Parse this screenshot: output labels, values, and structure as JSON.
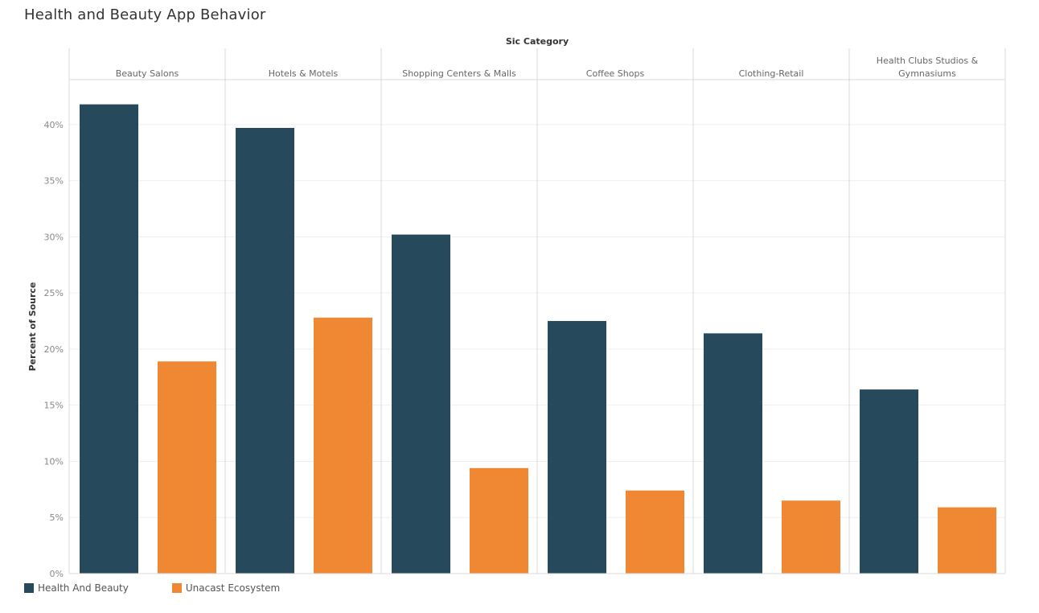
{
  "title": "Health and Beauty App Behavior",
  "chart_data": {
    "type": "bar",
    "column_header": "Sic Category",
    "ylabel": "Percent of Source",
    "ylim": [
      0,
      44
    ],
    "y_ticks": [
      0,
      5,
      10,
      15,
      20,
      25,
      30,
      35,
      40
    ],
    "y_tick_labels": [
      "0%",
      "5%",
      "10%",
      "15%",
      "20%",
      "25%",
      "30%",
      "35%",
      "40%"
    ],
    "grid": true,
    "legend_position": "bottom-left",
    "categories": [
      "Beauty Salons",
      "Hotels & Motels",
      "Shopping Centers & Malls",
      "Coffee Shops",
      "Clothing-Retail",
      "Health Clubs Studios & Gymnasiums"
    ],
    "category_label_lines": [
      [
        "Beauty Salons"
      ],
      [
        "Hotels & Motels"
      ],
      [
        "Shopping Centers & Malls"
      ],
      [
        "Coffee Shops"
      ],
      [
        "Clothing-Retail"
      ],
      [
        "Health Clubs Studios &",
        "Gymnasiums"
      ]
    ],
    "series": [
      {
        "name": "Health And Beauty",
        "color": "#27495c",
        "values": [
          41.8,
          39.7,
          30.2,
          22.5,
          21.4,
          16.4
        ]
      },
      {
        "name": "Unacast Ecosystem",
        "color": "#f08733",
        "values": [
          18.9,
          22.8,
          9.4,
          7.4,
          6.5,
          5.9
        ]
      }
    ]
  }
}
